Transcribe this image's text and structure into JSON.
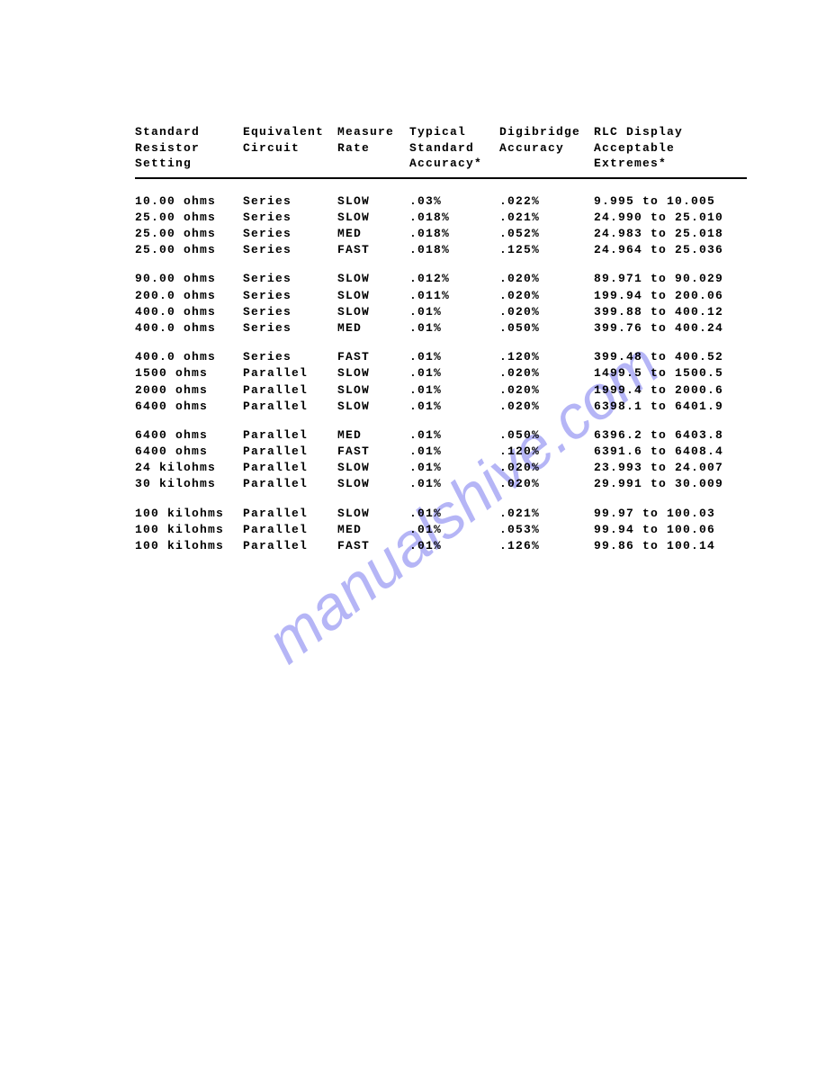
{
  "watermark": {
    "text": "manualshive.com",
    "color": "#7a7af0"
  },
  "table": {
    "columns": [
      "Standard\nResistor\nSetting",
      "Equivalent\nCircuit",
      "Measure\nRate",
      "Typical\nStandard\nAccuracy*",
      "Digibridge\nAccuracy",
      "RLC Display\nAcceptable\nExtremes*"
    ],
    "groups": [
      [
        {
          "setting": "10.00 ohms",
          "circuit": "Series",
          "rate": "SLOW",
          "std_acc": ".03%",
          "digi_acc": ".022%",
          "extremes": "9.995 to 10.005"
        },
        {
          "setting": "25.00 ohms",
          "circuit": "Series",
          "rate": "SLOW",
          "std_acc": ".018%",
          "digi_acc": ".021%",
          "extremes": "24.990 to 25.010"
        },
        {
          "setting": "25.00 ohms",
          "circuit": "Series",
          "rate": "MED",
          "std_acc": ".018%",
          "digi_acc": ".052%",
          "extremes": "24.983 to 25.018"
        },
        {
          "setting": "25.00 ohms",
          "circuit": "Series",
          "rate": "FAST",
          "std_acc": ".018%",
          "digi_acc": ".125%",
          "extremes": "24.964 to 25.036"
        }
      ],
      [
        {
          "setting": "90.00 ohms",
          "circuit": "Series",
          "rate": "SLOW",
          "std_acc": ".012%",
          "digi_acc": ".020%",
          "extremes": "89.971 to 90.029"
        },
        {
          "setting": "200.0 ohms",
          "circuit": "Series",
          "rate": "SLOW",
          "std_acc": ".011%",
          "digi_acc": ".020%",
          "extremes": "199.94 to 200.06"
        },
        {
          "setting": "400.0 ohms",
          "circuit": "Series",
          "rate": "SLOW",
          "std_acc": ".01%",
          "digi_acc": ".020%",
          "extremes": "399.88 to 400.12"
        },
        {
          "setting": "400.0 ohms",
          "circuit": "Series",
          "rate": "MED",
          "std_acc": ".01%",
          "digi_acc": ".050%",
          "extremes": "399.76 to 400.24"
        }
      ],
      [
        {
          "setting": "400.0 ohms",
          "circuit": "Series",
          "rate": "FAST",
          "std_acc": ".01%",
          "digi_acc": ".120%",
          "extremes": "399.48 to 400.52"
        },
        {
          "setting": "1500 ohms",
          "circuit": "Parallel",
          "rate": "SLOW",
          "std_acc": ".01%",
          "digi_acc": ".020%",
          "extremes": "1499.5 to 1500.5"
        },
        {
          "setting": "2000 ohms",
          "circuit": "Parallel",
          "rate": "SLOW",
          "std_acc": ".01%",
          "digi_acc": ".020%",
          "extremes": "1999.4 to 2000.6"
        },
        {
          "setting": "6400 ohms",
          "circuit": "Parallel",
          "rate": "SLOW",
          "std_acc": ".01%",
          "digi_acc": ".020%",
          "extremes": "6398.1 to 6401.9"
        }
      ],
      [
        {
          "setting": "6400 ohms",
          "circuit": "Parallel",
          "rate": "MED",
          "std_acc": ".01%",
          "digi_acc": ".050%",
          "extremes": "6396.2 to 6403.8"
        },
        {
          "setting": "6400 ohms",
          "circuit": "Parallel",
          "rate": "FAST",
          "std_acc": ".01%",
          "digi_acc": ".120%",
          "extremes": "6391.6 to 6408.4"
        },
        {
          "setting": "24 kilohms",
          "circuit": "Parallel",
          "rate": "SLOW",
          "std_acc": ".01%",
          "digi_acc": ".020%",
          "extremes": "23.993 to 24.007"
        },
        {
          "setting": "30 kilohms",
          "circuit": "Parallel",
          "rate": "SLOW",
          "std_acc": ".01%",
          "digi_acc": ".020%",
          "extremes": "29.991 to 30.009"
        }
      ],
      [
        {
          "setting": "100 kilohms",
          "circuit": "Parallel",
          "rate": "SLOW",
          "std_acc": ".01%",
          "digi_acc": ".021%",
          "extremes": "99.97 to 100.03"
        },
        {
          "setting": "100 kilohms",
          "circuit": "Parallel",
          "rate": "MED",
          "std_acc": ".01%",
          "digi_acc": ".053%",
          "extremes": "99.94 to 100.06"
        },
        {
          "setting": "100 kilohms",
          "circuit": "Parallel",
          "rate": "FAST",
          "std_acc": ".01%",
          "digi_acc": ".126%",
          "extremes": "99.86 to 100.14"
        }
      ]
    ]
  }
}
